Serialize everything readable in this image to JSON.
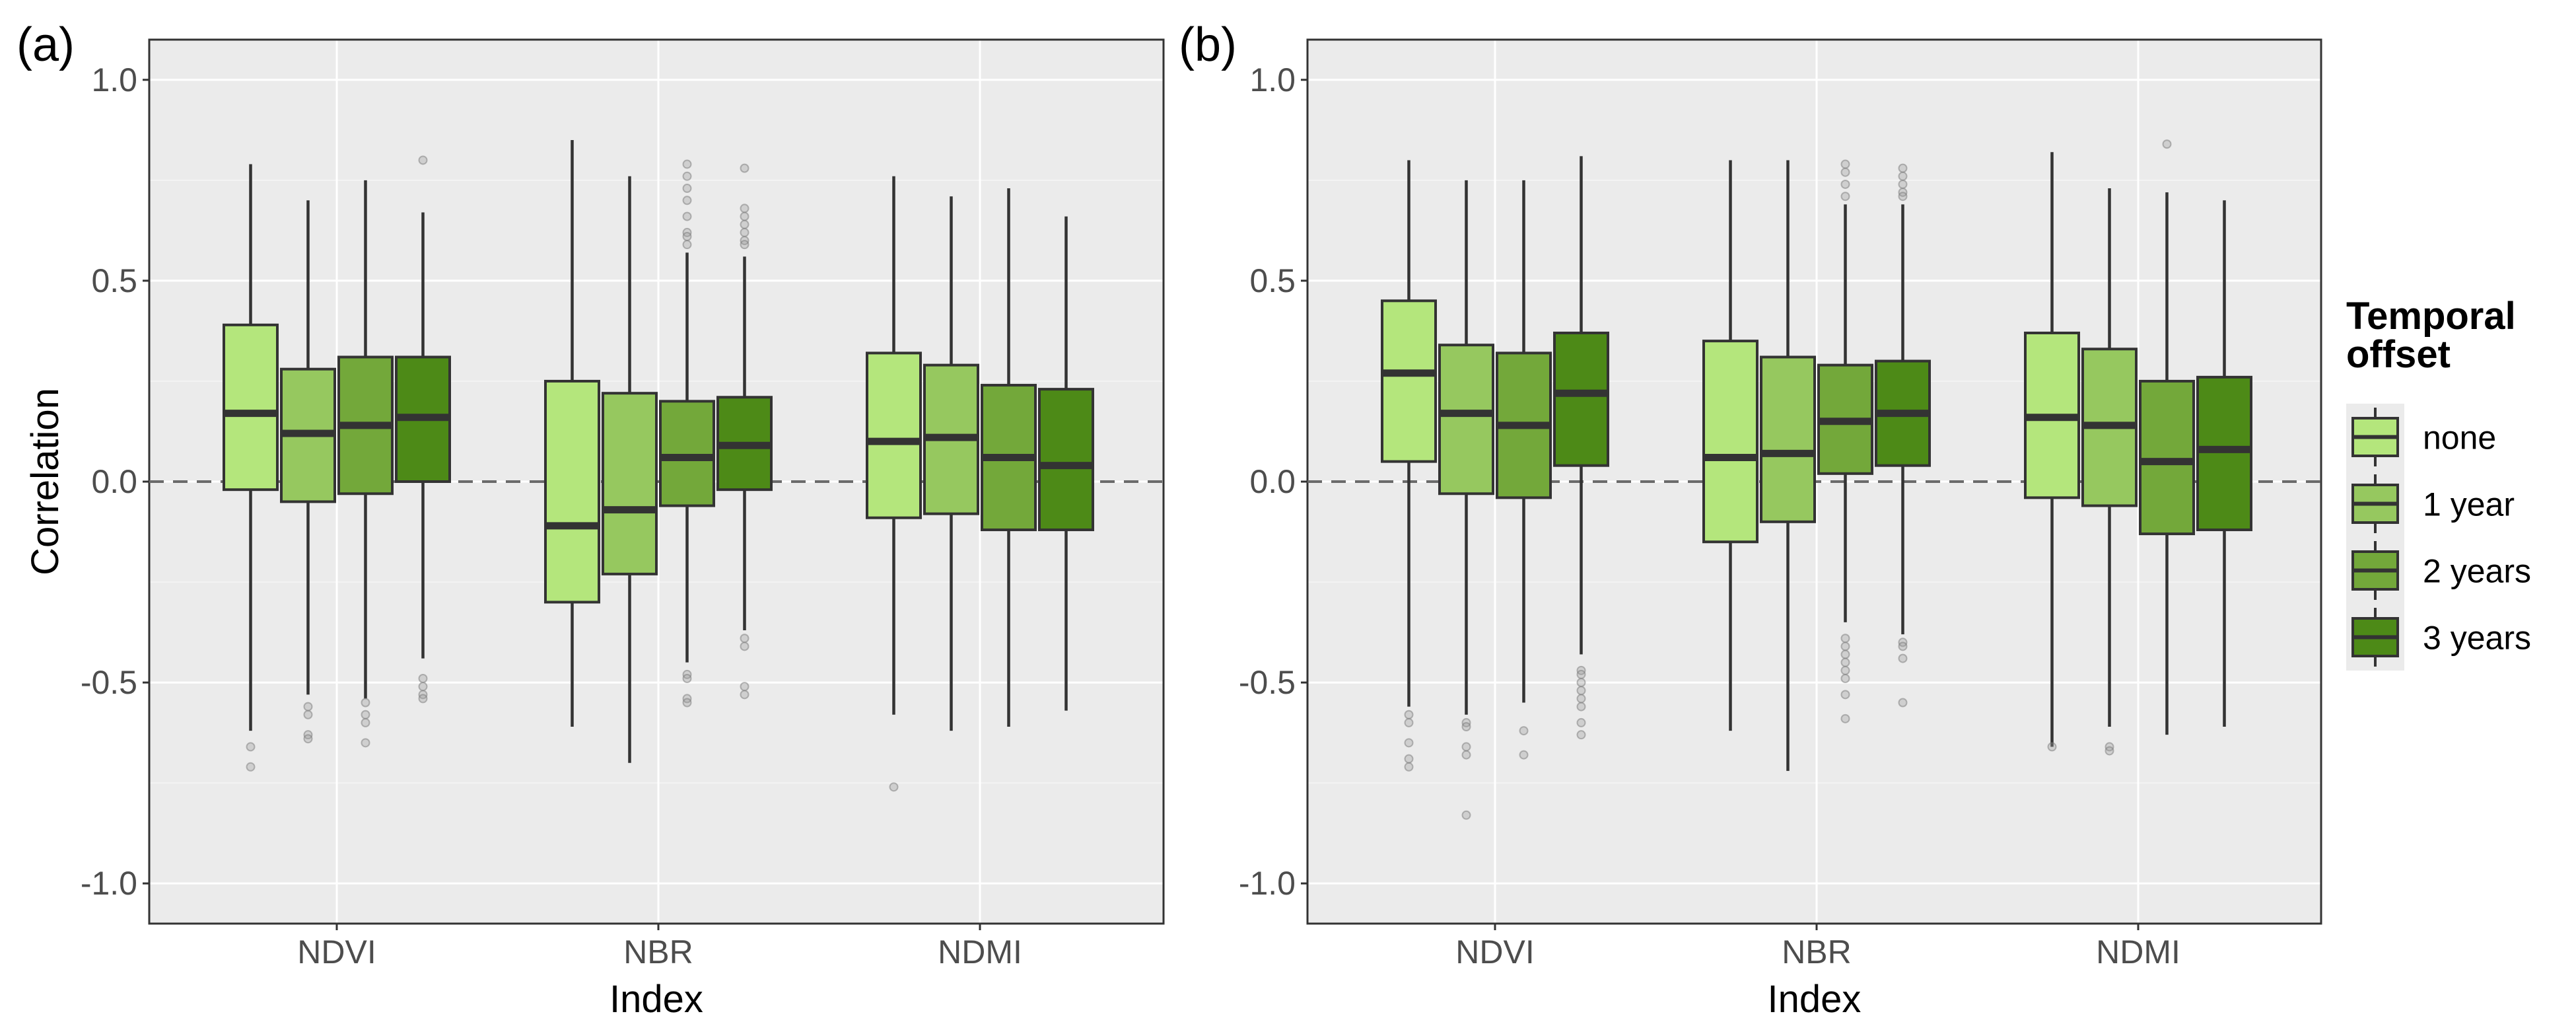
{
  "chart_data": {
    "type": "boxplot",
    "shared": {
      "xlabel": "Index",
      "ylabel": "Correlation",
      "categories": [
        "NDVI",
        "NBR",
        "NDMI"
      ],
      "ylim": [
        -1.1,
        1.1
      ],
      "yticks": [
        -1.0,
        -0.5,
        0.0,
        0.5,
        1.0
      ],
      "ytick_labels": [
        "-1.0",
        "-0.5",
        "0.0",
        "0.5",
        "1.0"
      ],
      "reference_line": 0.0,
      "legend": {
        "title_lines": [
          "Temporal",
          "offset"
        ],
        "placement": "right",
        "items": [
          {
            "label": "none",
            "color": "#b4e67c"
          },
          {
            "label": "1 year",
            "color": "#96c85f"
          },
          {
            "label": "2 years",
            "color": "#73a83a"
          },
          {
            "label": "3 years",
            "color": "#4d8a17"
          }
        ]
      }
    },
    "panels": [
      {
        "tag": "(a)",
        "groups": [
          {
            "category": "NDVI",
            "boxes": [
              {
                "offset": "none",
                "whisker_low": -0.62,
                "q1": -0.02,
                "median": 0.17,
                "q3": 0.39,
                "whisker_high": 0.79,
                "outliers": [
                  -0.66,
                  -0.71
                ]
              },
              {
                "offset": "1 year",
                "whisker_low": -0.53,
                "q1": -0.05,
                "median": 0.12,
                "q3": 0.28,
                "whisker_high": 0.7,
                "outliers": [
                  -0.56,
                  -0.58,
                  -0.63,
                  -0.64
                ]
              },
              {
                "offset": "2 years",
                "whisker_low": -0.54,
                "q1": -0.03,
                "median": 0.14,
                "q3": 0.31,
                "whisker_high": 0.75,
                "outliers": [
                  -0.55,
                  -0.58,
                  -0.6,
                  -0.65
                ]
              },
              {
                "offset": "3 years",
                "whisker_low": -0.44,
                "q1": 0.0,
                "median": 0.16,
                "q3": 0.31,
                "whisker_high": 0.67,
                "outliers": [
                  0.8,
                  -0.49,
                  -0.51,
                  -0.53,
                  -0.54
                ]
              }
            ]
          },
          {
            "category": "NBR",
            "boxes": [
              {
                "offset": "none",
                "whisker_low": -0.61,
                "q1": -0.3,
                "median": -0.11,
                "q3": 0.25,
                "whisker_high": 0.85,
                "outliers": []
              },
              {
                "offset": "1 year",
                "whisker_low": -0.7,
                "q1": -0.23,
                "median": -0.07,
                "q3": 0.22,
                "whisker_high": 0.76,
                "outliers": []
              },
              {
                "offset": "2 years",
                "whisker_low": -0.45,
                "q1": -0.06,
                "median": 0.06,
                "q3": 0.2,
                "whisker_high": 0.57,
                "outliers": [
                  0.79,
                  0.76,
                  0.73,
                  0.7,
                  0.66,
                  0.62,
                  0.61,
                  0.59,
                  -0.48,
                  -0.49,
                  -0.54,
                  -0.55
                ]
              },
              {
                "offset": "3 years",
                "whisker_low": -0.37,
                "q1": -0.02,
                "median": 0.09,
                "q3": 0.21,
                "whisker_high": 0.56,
                "outliers": [
                  0.78,
                  0.68,
                  0.66,
                  0.64,
                  0.62,
                  0.6,
                  0.59,
                  -0.39,
                  -0.41,
                  -0.51,
                  -0.53
                ]
              }
            ]
          },
          {
            "category": "NDMI",
            "boxes": [
              {
                "offset": "none",
                "whisker_low": -0.58,
                "q1": -0.09,
                "median": 0.1,
                "q3": 0.32,
                "whisker_high": 0.76,
                "outliers": [
                  -0.76
                ]
              },
              {
                "offset": "1 year",
                "whisker_low": -0.62,
                "q1": -0.08,
                "median": 0.11,
                "q3": 0.29,
                "whisker_high": 0.71,
                "outliers": []
              },
              {
                "offset": "2 years",
                "whisker_low": -0.61,
                "q1": -0.12,
                "median": 0.06,
                "q3": 0.24,
                "whisker_high": 0.73,
                "outliers": []
              },
              {
                "offset": "3 years",
                "whisker_low": -0.57,
                "q1": -0.12,
                "median": 0.04,
                "q3": 0.23,
                "whisker_high": 0.66,
                "outliers": []
              }
            ]
          }
        ]
      },
      {
        "tag": "(b)",
        "groups": [
          {
            "category": "NDVI",
            "boxes": [
              {
                "offset": "none",
                "whisker_low": -0.56,
                "q1": 0.05,
                "median": 0.27,
                "q3": 0.45,
                "whisker_high": 0.8,
                "outliers": [
                  -0.58,
                  -0.6,
                  -0.65,
                  -0.69,
                  -0.71
                ]
              },
              {
                "offset": "1 year",
                "whisker_low": -0.58,
                "q1": -0.03,
                "median": 0.17,
                "q3": 0.34,
                "whisker_high": 0.75,
                "outliers": [
                  -0.6,
                  -0.61,
                  -0.66,
                  -0.68,
                  -0.83
                ]
              },
              {
                "offset": "2 years",
                "whisker_low": -0.55,
                "q1": -0.04,
                "median": 0.14,
                "q3": 0.32,
                "whisker_high": 0.75,
                "outliers": [
                  -0.62,
                  -0.68
                ]
              },
              {
                "offset": "3 years",
                "whisker_low": -0.43,
                "q1": 0.04,
                "median": 0.22,
                "q3": 0.37,
                "whisker_high": 0.81,
                "outliers": [
                  -0.47,
                  -0.48,
                  -0.5,
                  -0.52,
                  -0.54,
                  -0.56,
                  -0.6,
                  -0.63
                ]
              }
            ]
          },
          {
            "category": "NBR",
            "boxes": [
              {
                "offset": "none",
                "whisker_low": -0.62,
                "q1": -0.15,
                "median": 0.06,
                "q3": 0.35,
                "whisker_high": 0.8,
                "outliers": []
              },
              {
                "offset": "1 year",
                "whisker_low": -0.72,
                "q1": -0.1,
                "median": 0.07,
                "q3": 0.31,
                "whisker_high": 0.8,
                "outliers": []
              },
              {
                "offset": "2 years",
                "whisker_low": -0.35,
                "q1": 0.02,
                "median": 0.15,
                "q3": 0.29,
                "whisker_high": 0.69,
                "outliers": [
                  0.79,
                  0.77,
                  0.74,
                  0.71,
                  -0.39,
                  -0.41,
                  -0.43,
                  -0.45,
                  -0.47,
                  -0.49,
                  -0.53,
                  -0.59
                ]
              },
              {
                "offset": "3 years",
                "whisker_low": -0.38,
                "q1": 0.04,
                "median": 0.17,
                "q3": 0.3,
                "whisker_high": 0.69,
                "outliers": [
                  0.78,
                  0.76,
                  0.74,
                  0.72,
                  0.71,
                  -0.4,
                  -0.41,
                  -0.44,
                  -0.55
                ]
              }
            ]
          },
          {
            "category": "NDMI",
            "boxes": [
              {
                "offset": "none",
                "whisker_low": -0.66,
                "q1": -0.04,
                "median": 0.16,
                "q3": 0.37,
                "whisker_high": 0.82,
                "outliers": [
                  -0.66
                ]
              },
              {
                "offset": "1 year",
                "whisker_low": -0.61,
                "q1": -0.06,
                "median": 0.14,
                "q3": 0.33,
                "whisker_high": 0.73,
                "outliers": [
                  -0.66,
                  -0.67
                ]
              },
              {
                "offset": "2 years",
                "whisker_low": -0.63,
                "q1": -0.13,
                "median": 0.05,
                "q3": 0.25,
                "whisker_high": 0.72,
                "outliers": [
                  0.84
                ]
              },
              {
                "offset": "3 years",
                "whisker_low": -0.61,
                "q1": -0.12,
                "median": 0.08,
                "q3": 0.26,
                "whisker_high": 0.7,
                "outliers": []
              }
            ]
          }
        ]
      }
    ]
  }
}
